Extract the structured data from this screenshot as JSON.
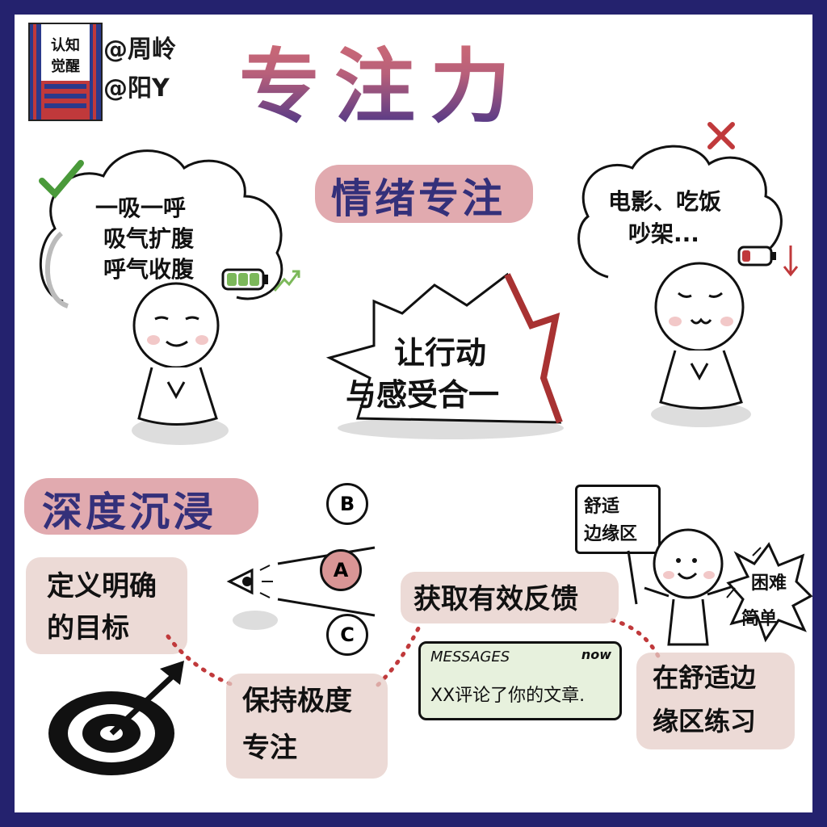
{
  "book": {
    "title_lines": [
      "认知",
      "觉醒"
    ],
    "colors": {
      "red": "#c0393b",
      "blue": "#2a3a8c"
    }
  },
  "credits": {
    "line1": "@周岭",
    "line2": "@阳Y"
  },
  "title": "专注力",
  "emotion": {
    "heading": "情绪专注",
    "good_thought": [
      "一吸一呼",
      "吸气扩腹",
      "呼气收腹"
    ],
    "bad_thought": [
      "电影、吃饭",
      "吵架..."
    ],
    "center_bubble": [
      "让行动",
      "与感受合一"
    ],
    "check_icon": "check-icon",
    "cross_icon": "cross-icon",
    "battery_full_color": "#7cb85a",
    "battery_low_color": "#c0393b"
  },
  "deep": {
    "heading": "深度沉浸",
    "options": [
      "B",
      "A",
      "C"
    ],
    "goal": [
      "定义明确",
      "的目标"
    ],
    "focus": [
      "保持极度",
      "专注"
    ],
    "feedback": "获取有效反馈",
    "message": {
      "app": "MESSAGES",
      "time": "now",
      "text": "XX评论了你的文章."
    },
    "comfort_sign": [
      "舒适",
      "边缘区"
    ],
    "hard": "困难",
    "easy": "简单",
    "practice": [
      "在舒适边",
      "缘区练习"
    ]
  }
}
